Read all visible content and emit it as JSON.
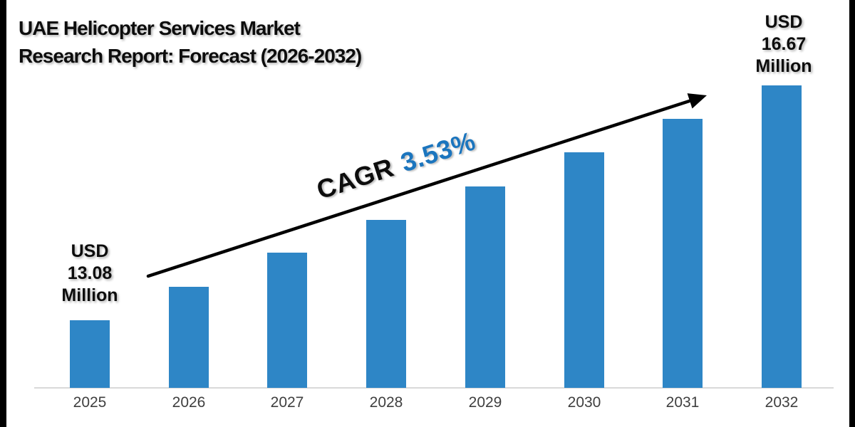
{
  "slide": {
    "title": {
      "line1": "UAE Helicopter Services Market",
      "line2": "Research Report: Forecast (2026-2032)"
    }
  },
  "chart_data": {
    "type": "bar",
    "title": "UAE Helicopter Services Market Research Report: Forecast (2026-2032)",
    "categories": [
      "2025",
      "2026",
      "2027",
      "2028",
      "2029",
      "2030",
      "2031",
      "2032"
    ],
    "values": [
      13.08,
      13.59,
      14.11,
      14.62,
      15.13,
      15.65,
      16.16,
      16.67
    ],
    "xlabel": "",
    "ylabel": "",
    "ylim": [
      12.05,
      17.0
    ],
    "grid": false,
    "legend": false,
    "bar_color": "#2E86C6",
    "axis_color": "#D9D9D9",
    "tick_label_color": "#3F3F3F",
    "start_label": {
      "line1": "USD",
      "line2": "13.08",
      "line3": "Million"
    },
    "end_label": {
      "line1": "USD",
      "line2": "16.67",
      "line3": "Million"
    },
    "cagr": {
      "prefix": "CAGR",
      "value": "3.53%",
      "value_color": "#1B75BE"
    },
    "annotations": {
      "trend_arrow": "rising arrow from 2025 bar label to 2032 bar top"
    }
  }
}
